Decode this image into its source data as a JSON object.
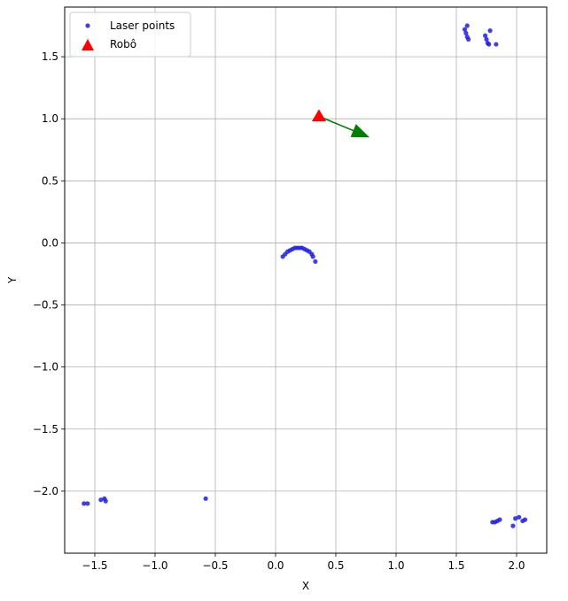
{
  "chart_data": {
    "type": "scatter",
    "xlabel": "X",
    "ylabel": "Y",
    "xlim": [
      -1.75,
      2.25
    ],
    "ylim": [
      -2.5,
      1.9
    ],
    "xticks": [
      -1.5,
      -1.0,
      -0.5,
      0.0,
      0.5,
      1.0,
      1.5,
      2.0
    ],
    "yticks": [
      -2.0,
      -1.5,
      -1.0,
      -0.5,
      0.0,
      0.5,
      1.0,
      1.5
    ],
    "xtick_labels": [
      "−1.5",
      "−1.0",
      "−0.5",
      "0.0",
      "0.5",
      "1.0",
      "1.5",
      "2.0"
    ],
    "ytick_labels": [
      "−2.0",
      "−1.5",
      "−1.0",
      "−0.5",
      "0.0",
      "0.5",
      "1.0",
      "1.5"
    ],
    "grid": true,
    "legend_position": "upper-left",
    "legend": [
      {
        "label": "Laser points",
        "marker": "dot",
        "color": "#1f1fe0"
      },
      {
        "label": "Robô",
        "marker": "triangle",
        "color": "#ff0000"
      }
    ],
    "series": [
      {
        "name": "Laser points",
        "color": "#1f1fe0",
        "points": [
          [
            -1.59,
            -2.1
          ],
          [
            -1.56,
            -2.1
          ],
          [
            -1.45,
            -2.07
          ],
          [
            -1.42,
            -2.06
          ],
          [
            -1.41,
            -2.08
          ],
          [
            -0.58,
            -2.06
          ],
          [
            0.06,
            -0.11
          ],
          [
            0.08,
            -0.09
          ],
          [
            0.1,
            -0.07
          ],
          [
            0.12,
            -0.06
          ],
          [
            0.14,
            -0.05
          ],
          [
            0.16,
            -0.04
          ],
          [
            0.18,
            -0.04
          ],
          [
            0.2,
            -0.04
          ],
          [
            0.22,
            -0.04
          ],
          [
            0.24,
            -0.05
          ],
          [
            0.26,
            -0.06
          ],
          [
            0.28,
            -0.07
          ],
          [
            0.3,
            -0.09
          ],
          [
            0.31,
            -0.11
          ],
          [
            0.33,
            -0.15
          ],
          [
            1.57,
            1.72
          ],
          [
            1.58,
            1.69
          ],
          [
            1.59,
            1.75
          ],
          [
            1.59,
            1.66
          ],
          [
            1.6,
            1.64
          ],
          [
            1.74,
            1.67
          ],
          [
            1.75,
            1.64
          ],
          [
            1.76,
            1.61
          ],
          [
            1.77,
            1.6
          ],
          [
            1.78,
            1.71
          ],
          [
            1.83,
            1.6
          ],
          [
            1.8,
            -2.25
          ],
          [
            1.82,
            -2.25
          ],
          [
            1.84,
            -2.24
          ],
          [
            1.86,
            -2.23
          ],
          [
            1.97,
            -2.28
          ],
          [
            1.99,
            -2.22
          ],
          [
            2.02,
            -2.21
          ],
          [
            2.05,
            -2.24
          ],
          [
            2.07,
            -2.23
          ]
        ]
      },
      {
        "name": "Robô",
        "color": "#ff0000",
        "points": [
          [
            0.36,
            1.02
          ]
        ]
      }
    ],
    "heading_arrow": {
      "from": [
        0.36,
        1.02
      ],
      "to": [
        0.78,
        0.85
      ],
      "color": "#008000"
    }
  }
}
